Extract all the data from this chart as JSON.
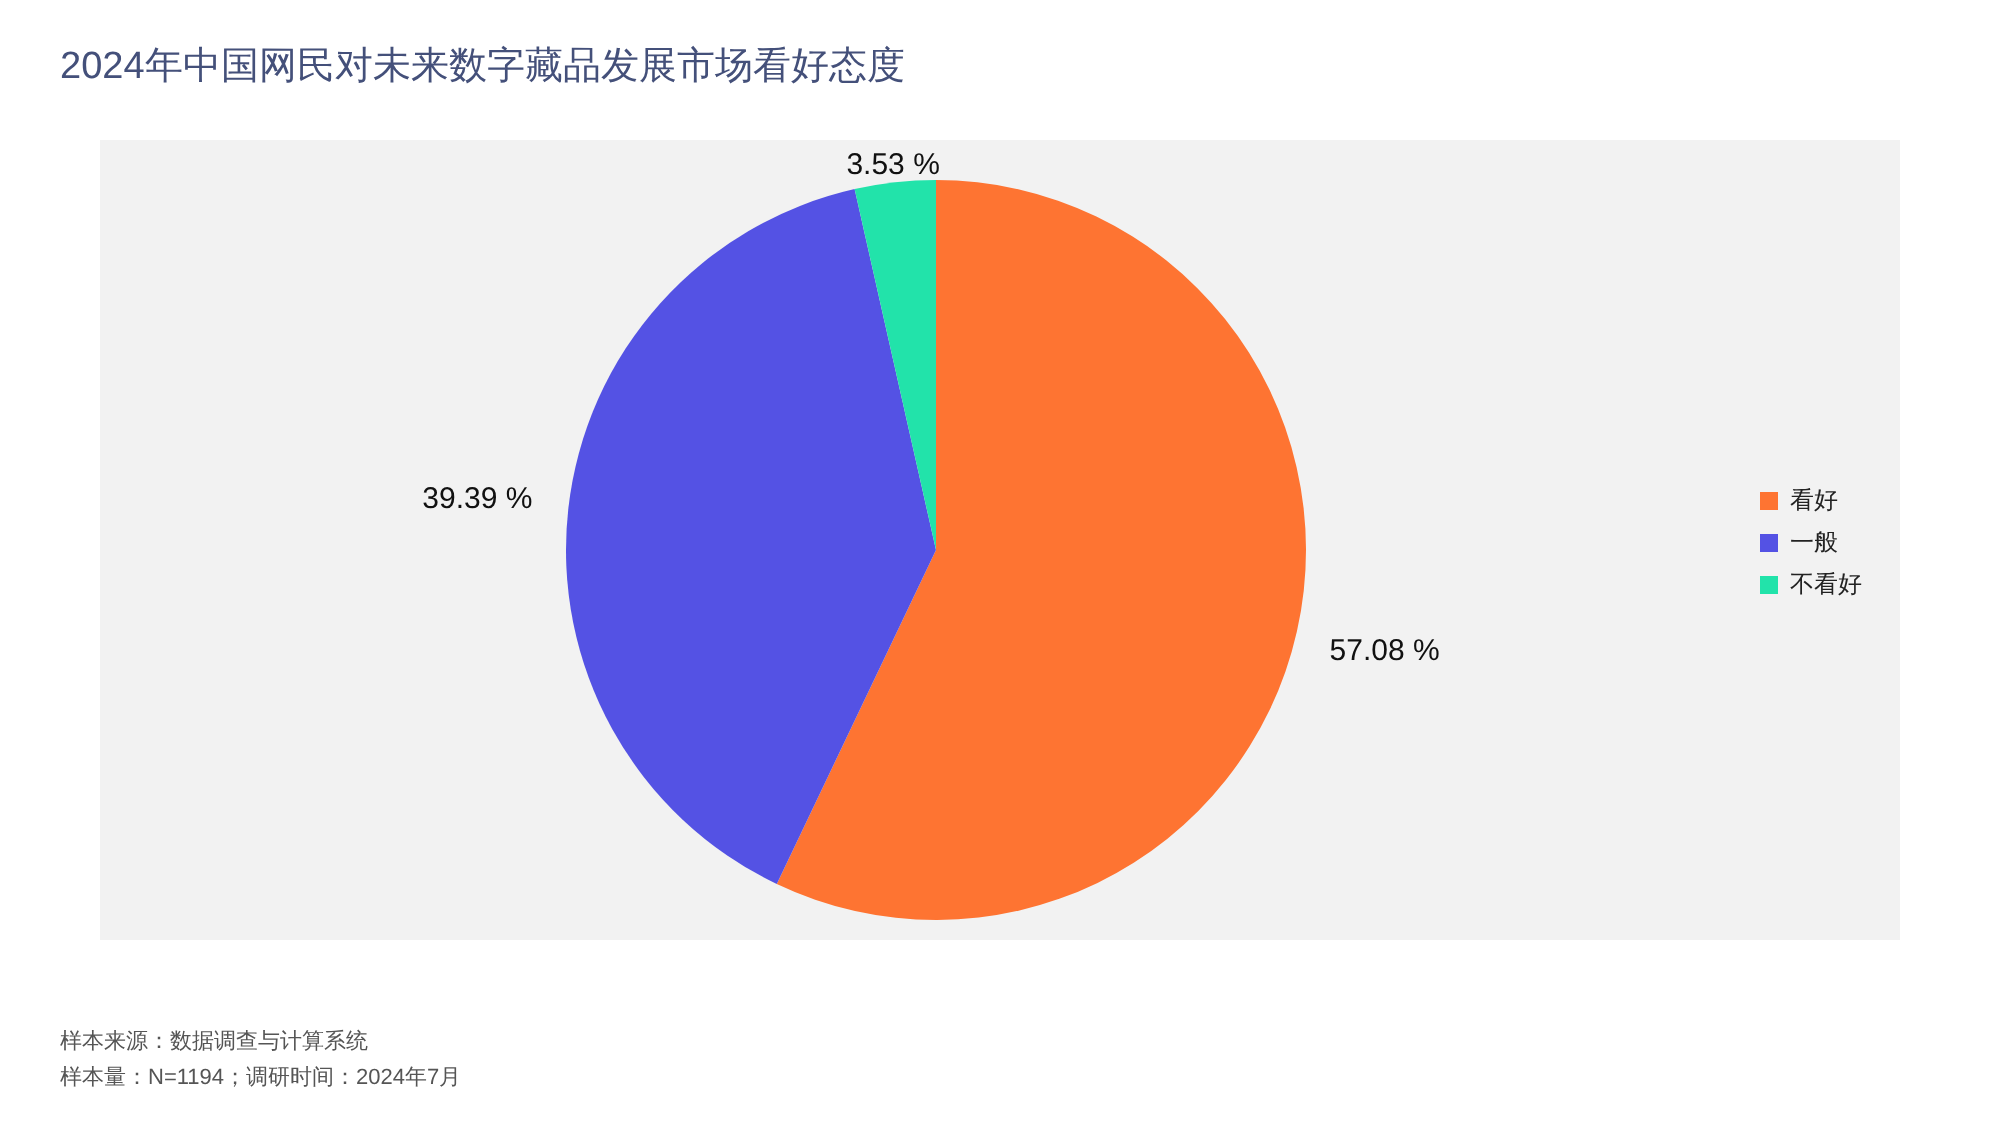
{
  "chart_data": {
    "type": "pie",
    "title": "2024年中国网民对未来数字藏品发展市场看好态度",
    "categories": [
      "看好",
      "一般",
      "不看好"
    ],
    "values": [
      57.08,
      39.39,
      3.53
    ],
    "colors": [
      "#fe7432",
      "#5452e4",
      "#22e3aa"
    ],
    "value_labels": [
      "57.08 %",
      "39.39 %",
      "3.53 %"
    ],
    "legend": "right",
    "annotations": [
      "样本来源：数据调查与计算系统",
      "样本量：N=1194；调研时间：2024年7月"
    ]
  }
}
